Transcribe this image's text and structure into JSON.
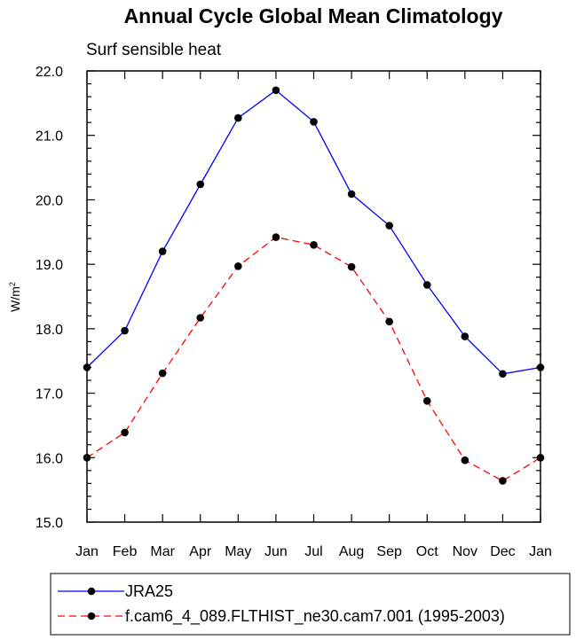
{
  "chart_data": {
    "type": "line",
    "title": "Annual Cycle Global Mean Climatology",
    "subtitle": "Surf sensible heat",
    "ylabel": "W/m",
    "ylabel_sup": "2",
    "xlabel": "",
    "ylim": [
      15.0,
      22.0
    ],
    "yticks": [
      "15.0",
      "16.0",
      "17.0",
      "18.0",
      "19.0",
      "20.0",
      "21.0",
      "22.0"
    ],
    "categories": [
      "Jan",
      "Feb",
      "Mar",
      "Apr",
      "May",
      "Jun",
      "Jul",
      "Aug",
      "Sep",
      "Oct",
      "Nov",
      "Dec",
      "Jan"
    ],
    "series": [
      {
        "name": "JRA25",
        "color": "#0000ff",
        "style": "solid",
        "values": [
          17.4,
          17.97,
          19.2,
          20.24,
          21.27,
          21.7,
          21.21,
          20.09,
          19.6,
          18.68,
          17.88,
          17.3,
          17.4
        ]
      },
      {
        "name": "f.cam6_4_089.FLTHIST_ne30.cam7.001 (1995-2003)",
        "color": "#ff0000",
        "style": "dashed",
        "values": [
          16.0,
          16.39,
          17.31,
          18.17,
          18.97,
          19.42,
          19.3,
          18.96,
          18.11,
          16.88,
          15.96,
          15.64,
          16.0
        ]
      }
    ]
  }
}
